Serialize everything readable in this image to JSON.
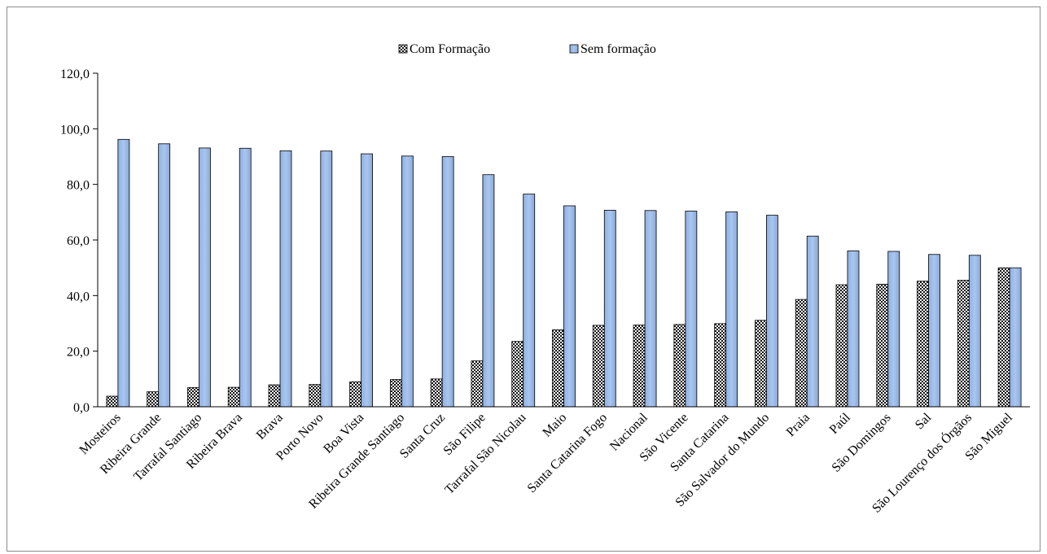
{
  "chart_data": {
    "type": "bar",
    "title": "",
    "xlabel": "",
    "ylabel": "",
    "ylim": [
      0,
      120
    ],
    "y_ticks": [
      "0,0",
      "20,0",
      "40,0",
      "60,0",
      "80,0",
      "100,0",
      "120,0"
    ],
    "grid": false,
    "legend_position": "top-center",
    "categories": [
      "Mosteiros",
      "Ribeira Grande",
      "Tarrafal Santiago",
      "Ribeira Brava",
      "Brava",
      "Porto Novo",
      "Boa Vista",
      "Ribeira Grande Santiago",
      "Santa Cruz",
      "São Filipe",
      "Tarrafal São Nicolau",
      "Maio",
      "Santa Catarina Fogo",
      "Nacional",
      "São Vicente",
      "Santa Catarina",
      "São Salvador do Mundo",
      "Praia",
      "Paúl",
      "São Domingos",
      "Sal",
      "São Lourenço dos Órgãos",
      "São Miguel"
    ],
    "series": [
      {
        "name": "Com Formação",
        "color": "#111111",
        "pattern": "checker",
        "values": [
          3.8,
          5.4,
          6.9,
          7.0,
          7.9,
          8.0,
          9.0,
          9.8,
          10.0,
          16.5,
          23.5,
          27.7,
          29.3,
          29.4,
          29.6,
          29.9,
          31.1,
          38.6,
          43.9,
          44.1,
          45.2,
          45.5,
          50.0
        ]
      },
      {
        "name": "Sem formação",
        "color": "#99b9e6",
        "pattern": "solid",
        "values": [
          96.2,
          94.6,
          93.1,
          93.0,
          92.1,
          92.0,
          91.0,
          90.2,
          90.0,
          83.5,
          76.5,
          72.3,
          70.7,
          70.6,
          70.4,
          70.1,
          68.9,
          61.4,
          56.1,
          55.9,
          54.8,
          54.5,
          50.0
        ]
      }
    ]
  }
}
